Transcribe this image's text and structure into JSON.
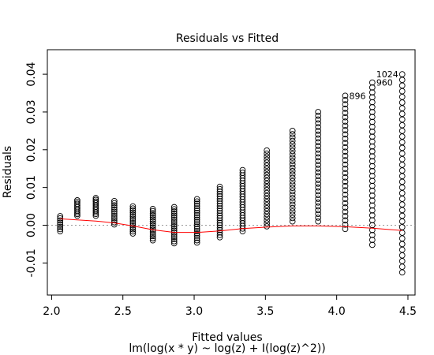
{
  "chart_data": {
    "type": "scatter",
    "title": "Residuals vs Fitted",
    "xlabel": "Fitted values",
    "ylabel": "Residuals",
    "subtitle": "lm(log(x * y) ~ log(z) + I(log(z)^2))",
    "xlim": [
      1.97,
      4.55
    ],
    "ylim": [
      -0.0185,
      0.0465
    ],
    "x_ticks": [
      2.0,
      2.5,
      3.0,
      3.5,
      4.0,
      4.5
    ],
    "x_tick_labels": [
      "2.0",
      "2.5",
      "3.0",
      "3.5",
      "4.0",
      "4.5"
    ],
    "y_ticks": [
      -0.01,
      0.0,
      0.01,
      0.02,
      0.03,
      0.04
    ],
    "y_tick_labels": [
      "-0.01",
      "0.00",
      "0.01",
      "0.02",
      "0.03",
      "0.04"
    ],
    "zero_line": 0,
    "grid": false,
    "columns": [
      {
        "x": 2.06,
        "ymin": -0.0016,
        "ymax": 0.0024,
        "n": 8
      },
      {
        "x": 2.18,
        "ymin": 0.0025,
        "ymax": 0.0066,
        "n": 10
      },
      {
        "x": 2.31,
        "ymin": 0.0025,
        "ymax": 0.0072,
        "n": 11
      },
      {
        "x": 2.44,
        "ymin": 0.0002,
        "ymax": 0.0064,
        "n": 12
      },
      {
        "x": 2.57,
        "ymin": -0.0022,
        "ymax": 0.005,
        "n": 14
      },
      {
        "x": 2.71,
        "ymin": -0.004,
        "ymax": 0.0043,
        "n": 16
      },
      {
        "x": 2.86,
        "ymin": -0.0048,
        "ymax": 0.0048,
        "n": 18
      },
      {
        "x": 3.02,
        "ymin": -0.0046,
        "ymax": 0.0069,
        "n": 20
      },
      {
        "x": 3.18,
        "ymin": -0.0032,
        "ymax": 0.0102,
        "n": 22
      },
      {
        "x": 3.34,
        "ymin": -0.0016,
        "ymax": 0.0146,
        "n": 24
      },
      {
        "x": 3.51,
        "ymin": -0.0003,
        "ymax": 0.0198,
        "n": 26
      },
      {
        "x": 3.69,
        "ymin": 0.001,
        "ymax": 0.025,
        "n": 28
      },
      {
        "x": 3.87,
        "ymin": 0.001,
        "ymax": 0.03,
        "n": 30
      },
      {
        "x": 4.06,
        "ymin": -0.001,
        "ymax": 0.0343,
        "n": 32
      },
      {
        "x": 4.25,
        "ymin": -0.0052,
        "ymax": 0.0378,
        "n": 34
      },
      {
        "x": 4.46,
        "ymin": -0.0125,
        "ymax": 0.04,
        "n": 36
      }
    ],
    "smooth": [
      [
        2.06,
        0.0017
      ],
      [
        2.18,
        0.0014
      ],
      [
        2.31,
        0.0011
      ],
      [
        2.44,
        0.0006
      ],
      [
        2.57,
        -0.0002
      ],
      [
        2.71,
        -0.0012
      ],
      [
        2.86,
        -0.0019
      ],
      [
        3.02,
        -0.0019
      ],
      [
        3.18,
        -0.0015
      ],
      [
        3.34,
        -0.0009
      ],
      [
        3.51,
        -0.0005
      ],
      [
        3.69,
        -0.0002
      ],
      [
        3.87,
        -0.0002
      ],
      [
        4.06,
        -0.0004
      ],
      [
        4.25,
        -0.0008
      ],
      [
        4.46,
        -0.0014
      ]
    ],
    "labeled_points": [
      {
        "label": "1024",
        "x": 4.46,
        "y": 0.04,
        "side": "left"
      },
      {
        "label": "960",
        "x": 4.25,
        "y": 0.0378,
        "side": "right"
      },
      {
        "label": "896",
        "x": 4.06,
        "y": 0.0343,
        "side": "right"
      }
    ],
    "colors": {
      "points": "#000000",
      "smooth": "#ff0000",
      "zero_line": "#999999"
    }
  }
}
